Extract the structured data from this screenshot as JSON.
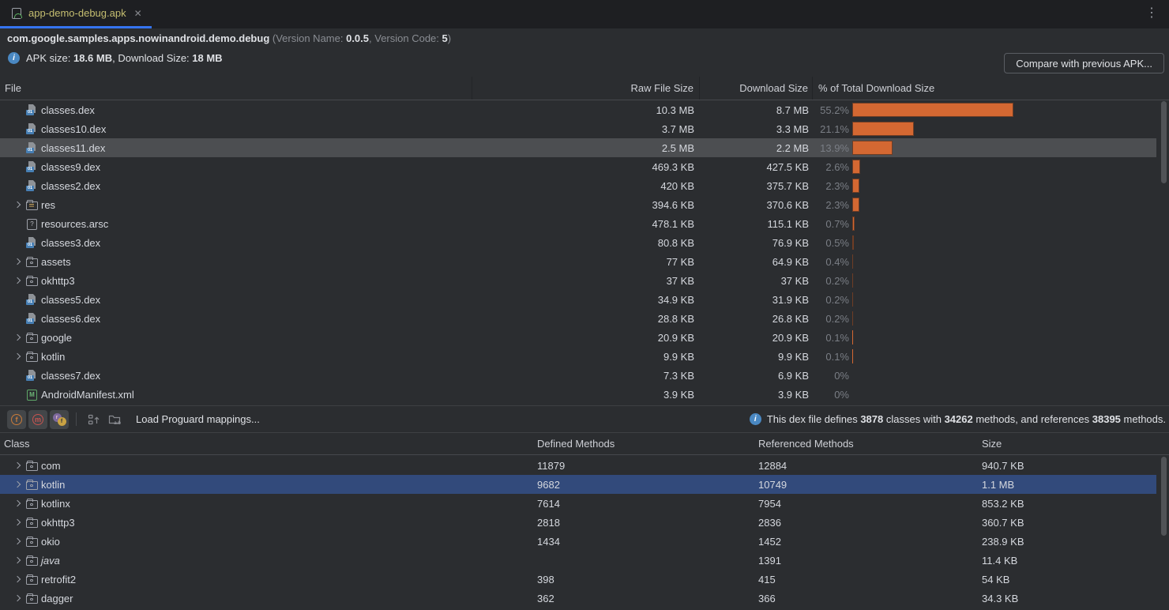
{
  "window": {
    "menu_icon": "⋮"
  },
  "tab": {
    "title": "app-demo-debug.apk",
    "close_icon": "✕"
  },
  "header": {
    "package_name": "com.google.samples.apps.nowinandroid.demo.debug",
    "version_open": " (Version Name: ",
    "version_name": "0.0.5",
    "version_sep": ", Version Code: ",
    "version_code": "5",
    "version_close": ")",
    "info_icon_glyph": "i",
    "apk_size_label": "APK size: ",
    "apk_size_value": "18.6 MB",
    "download_size_label": ", Download Size: ",
    "download_size_value": "18 MB",
    "compare_button_label": "Compare with previous APK..."
  },
  "file_table": {
    "columns": {
      "file": "File",
      "raw": "Raw File Size",
      "download": "Download Size",
      "pct": "% of Total Download Size"
    },
    "rows": [
      {
        "name": "classes.dex",
        "icon": "dex",
        "raw": "10.3 MB",
        "download": "8.7 MB",
        "pct": "55.2%",
        "pct_value": 55.2,
        "selected": false
      },
      {
        "name": "classes10.dex",
        "icon": "dex",
        "raw": "3.7 MB",
        "download": "3.3 MB",
        "pct": "21.1%",
        "pct_value": 21.1,
        "selected": false
      },
      {
        "name": "classes11.dex",
        "icon": "dex",
        "raw": "2.5 MB",
        "download": "2.2 MB",
        "pct": "13.9%",
        "pct_value": 13.9,
        "selected": true
      },
      {
        "name": "classes9.dex",
        "icon": "dex",
        "raw": "469.3 KB",
        "download": "427.5 KB",
        "pct": "2.6%",
        "pct_value": 2.6,
        "selected": false
      },
      {
        "name": "classes2.dex",
        "icon": "dex",
        "raw": "420 KB",
        "download": "375.7 KB",
        "pct": "2.3%",
        "pct_value": 2.3,
        "selected": false
      },
      {
        "name": "res",
        "icon": "folder-res",
        "expandable": true,
        "raw": "394.6 KB",
        "download": "370.6 KB",
        "pct": "2.3%",
        "pct_value": 2.3,
        "selected": false
      },
      {
        "name": "resources.arsc",
        "icon": "arsc",
        "raw": "478.1 KB",
        "download": "115.1 KB",
        "pct": "0.7%",
        "pct_value": 0.7,
        "selected": false
      },
      {
        "name": "classes3.dex",
        "icon": "dex",
        "raw": "80.8 KB",
        "download": "76.9 KB",
        "pct": "0.5%",
        "pct_value": 0.5,
        "selected": false
      },
      {
        "name": "assets",
        "icon": "folder",
        "expandable": true,
        "raw": "77 KB",
        "download": "64.9 KB",
        "pct": "0.4%",
        "pct_value": 0.4,
        "selected": false
      },
      {
        "name": "okhttp3",
        "icon": "folder",
        "expandable": true,
        "raw": "37 KB",
        "download": "37 KB",
        "pct": "0.2%",
        "pct_value": 0.2,
        "selected": false
      },
      {
        "name": "classes5.dex",
        "icon": "dex",
        "raw": "34.9 KB",
        "download": "31.9 KB",
        "pct": "0.2%",
        "pct_value": 0.2,
        "selected": false
      },
      {
        "name": "classes6.dex",
        "icon": "dex",
        "raw": "28.8 KB",
        "download": "26.8 KB",
        "pct": "0.2%",
        "pct_value": 0.2,
        "selected": false
      },
      {
        "name": "google",
        "icon": "folder",
        "expandable": true,
        "raw": "20.9 KB",
        "download": "20.9 KB",
        "pct": "0.1%",
        "pct_value": 0.1,
        "selected": false
      },
      {
        "name": "kotlin",
        "icon": "folder",
        "expandable": true,
        "raw": "9.9 KB",
        "download": "9.9 KB",
        "pct": "0.1%",
        "pct_value": 0.1,
        "selected": false
      },
      {
        "name": "classes7.dex",
        "icon": "dex",
        "raw": "7.3 KB",
        "download": "6.9 KB",
        "pct": "0%",
        "pct_value": 0,
        "selected": false
      },
      {
        "name": "AndroidManifest.xml",
        "icon": "manifest",
        "raw": "3.9 KB",
        "download": "3.9 KB",
        "pct": "0%",
        "pct_value": 0,
        "selected": false
      }
    ]
  },
  "dex_toolbar": {
    "toggles": [
      {
        "letter": "f"
      },
      {
        "letter": "m"
      },
      {
        "letter_a": "r",
        "letter_b": "f"
      }
    ],
    "package_view_label": "a.b",
    "load_mappings_label": "Load Proguard mappings...",
    "info": {
      "pre": "This dex file defines ",
      "classes_count": "3878",
      "mid1": " classes with ",
      "methods_count": "34262",
      "mid2": " methods, and references ",
      "references_count": "38395",
      "post": " methods."
    }
  },
  "class_table": {
    "columns": {
      "class": "Class",
      "defined": "Defined Methods",
      "referenced": "Referenced Methods",
      "size": "Size"
    },
    "rows": [
      {
        "name": "com",
        "defined": "11879",
        "referenced": "12884",
        "size": "940.7 KB",
        "selected": false,
        "italic": false
      },
      {
        "name": "kotlin",
        "defined": "9682",
        "referenced": "10749",
        "size": "1.1 MB",
        "selected": true,
        "italic": false
      },
      {
        "name": "kotlinx",
        "defined": "7614",
        "referenced": "7954",
        "size": "853.2 KB",
        "selected": false,
        "italic": false
      },
      {
        "name": "okhttp3",
        "defined": "2818",
        "referenced": "2836",
        "size": "360.7 KB",
        "selected": false,
        "italic": false
      },
      {
        "name": "okio",
        "defined": "1434",
        "referenced": "1452",
        "size": "238.9 KB",
        "selected": false,
        "italic": false
      },
      {
        "name": "java",
        "defined": "",
        "referenced": "1391",
        "size": "11.4 KB",
        "selected": false,
        "italic": true
      },
      {
        "name": "retrofit2",
        "defined": "398",
        "referenced": "415",
        "size": "54 KB",
        "selected": false,
        "italic": false
      },
      {
        "name": "dagger",
        "defined": "362",
        "referenced": "366",
        "size": "34.3 KB",
        "selected": false,
        "italic": false
      }
    ]
  }
}
